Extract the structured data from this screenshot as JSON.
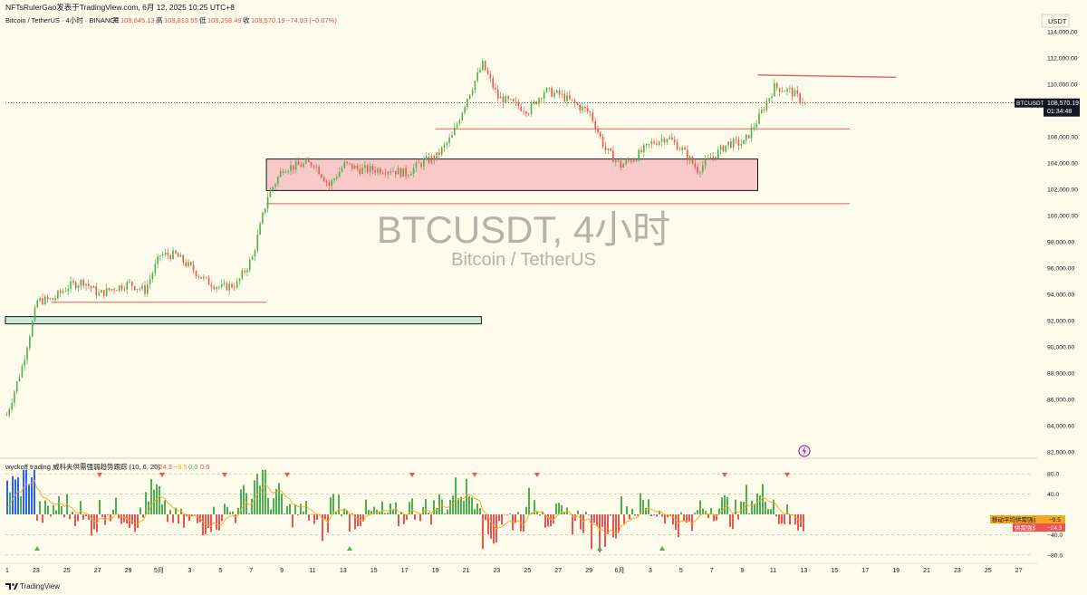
{
  "header": {
    "publisher": "NFTsRulerGao发表于TradingView.com, 6月 12, 2025 10:25 UTC+8",
    "symbol_line": "Bitcoin / TetherUS · 4小时 · BINANCE",
    "ohlc": {
      "open_label": "开",
      "open": "108,645.13",
      "high_label": "高",
      "high": "108,813.55",
      "low_label": "低",
      "low": "108,258.49",
      "close_label": "收",
      "close": "108,570.19",
      "change": "−74.93 (−0.07%)"
    }
  },
  "watermark": {
    "title": "BTCUSDT, 4小时",
    "subtitle": "Bitcoin / TetherUS"
  },
  "price_axis": {
    "currency": "USDT",
    "ticks": [
      "114,000.00",
      "112,000.00",
      "110,000.00",
      "108,000.00",
      "106,000.00",
      "104,000.00",
      "102,000.00",
      "100,000.00",
      "98,000.00",
      "96,000.00",
      "94,000.00",
      "92,000.00",
      "90,000.00",
      "88,000.00",
      "86,000.00",
      "84,000.00",
      "82,000.00"
    ],
    "last_label": "BTCUSDT",
    "last_price": "108,570.19",
    "countdown": "01:34:48"
  },
  "indicator": {
    "title": "wyckoff trading 威科夫供需强弱趋势跟踪 (10, 6, 20)",
    "values": [
      "−24.3",
      "−9.5",
      "0.0",
      "0.0"
    ],
    "ticks": [
      "80.0",
      "40.0",
      "−40.0",
      "−80.0"
    ],
    "label_ma": "移动平均供需强弱",
    "label_ma_value": "−9.5",
    "label_sd": "供需强弱",
    "label_sd_value": "−24.3"
  },
  "time_axis": {
    "labels": [
      "1",
      "23",
      "25",
      "27",
      "29",
      "5月",
      "3",
      "5",
      "7",
      "9",
      "11",
      "13",
      "15",
      "17",
      "19",
      "21",
      "23",
      "25",
      "27",
      "29",
      "6月",
      "3",
      "5",
      "7",
      "9",
      "11",
      "13",
      "15",
      "17",
      "19",
      "21",
      "23",
      "25",
      "27"
    ]
  },
  "footer": {
    "brand": "TradingView"
  },
  "colors": {
    "background": "#fdfbea",
    "up": "#4caf50",
    "down": "#ef5350",
    "ma": "#f5a623",
    "resistance_zone": "#f8c9c6",
    "support_zone": "#cfe8d2",
    "line_red": "#e06060",
    "last_price": "#131722"
  },
  "chart_data": {
    "type": "candlestick",
    "title": "BTCUSDT, 4小时",
    "interval": "4h",
    "ylim": [
      82000,
      114500
    ],
    "price_path": [
      {
        "date": "2025-04-21",
        "price": 84800
      },
      {
        "date": "2025-04-22",
        "price": 88500
      },
      {
        "date": "2025-04-23",
        "price": 93500
      },
      {
        "date": "2025-04-24",
        "price": 93600
      },
      {
        "date": "2025-04-25",
        "price": 94600
      },
      {
        "date": "2025-04-26",
        "price": 95000
      },
      {
        "date": "2025-04-27",
        "price": 94000
      },
      {
        "date": "2025-04-28",
        "price": 94500
      },
      {
        "date": "2025-04-29",
        "price": 94800
      },
      {
        "date": "2025-04-30",
        "price": 94300
      },
      {
        "date": "2025-05-01",
        "price": 97000
      },
      {
        "date": "2025-05-02",
        "price": 97000
      },
      {
        "date": "2025-05-03",
        "price": 96000
      },
      {
        "date": "2025-05-04",
        "price": 95000
      },
      {
        "date": "2025-05-05",
        "price": 94500
      },
      {
        "date": "2025-05-06",
        "price": 94800
      },
      {
        "date": "2025-05-07",
        "price": 96800
      },
      {
        "date": "2025-05-08",
        "price": 101500
      },
      {
        "date": "2025-05-09",
        "price": 103600
      },
      {
        "date": "2025-05-10",
        "price": 103800
      },
      {
        "date": "2025-05-11",
        "price": 104000
      },
      {
        "date": "2025-05-12",
        "price": 102300
      },
      {
        "date": "2025-05-13",
        "price": 103900
      },
      {
        "date": "2025-05-14",
        "price": 103500
      },
      {
        "date": "2025-05-15",
        "price": 103500
      },
      {
        "date": "2025-05-16",
        "price": 103500
      },
      {
        "date": "2025-05-17",
        "price": 103200
      },
      {
        "date": "2025-05-18",
        "price": 104000
      },
      {
        "date": "2025-05-19",
        "price": 104500
      },
      {
        "date": "2025-05-20",
        "price": 106000
      },
      {
        "date": "2025-05-21",
        "price": 109000
      },
      {
        "date": "2025-05-22",
        "price": 111500
      },
      {
        "date": "2025-05-23",
        "price": 109000
      },
      {
        "date": "2025-05-24",
        "price": 108500
      },
      {
        "date": "2025-05-25",
        "price": 108000
      },
      {
        "date": "2025-05-26",
        "price": 109500
      },
      {
        "date": "2025-05-27",
        "price": 109200
      },
      {
        "date": "2025-05-28",
        "price": 108500
      },
      {
        "date": "2025-05-29",
        "price": 107800
      },
      {
        "date": "2025-05-30",
        "price": 105000
      },
      {
        "date": "2025-05-31",
        "price": 103800
      },
      {
        "date": "2025-06-01",
        "price": 104500
      },
      {
        "date": "2025-06-02",
        "price": 105500
      },
      {
        "date": "2025-06-03",
        "price": 106000
      },
      {
        "date": "2025-06-04",
        "price": 105000
      },
      {
        "date": "2025-06-05",
        "price": 103500
      },
      {
        "date": "2025-06-06",
        "price": 104500
      },
      {
        "date": "2025-06-07",
        "price": 105500
      },
      {
        "date": "2025-06-08",
        "price": 105500
      },
      {
        "date": "2025-06-09",
        "price": 107500
      },
      {
        "date": "2025-06-10",
        "price": 109800
      },
      {
        "date": "2025-06-11",
        "price": 109500
      },
      {
        "date": "2025-06-12",
        "price": 108570
      }
    ],
    "zones": [
      {
        "type": "resistance",
        "from": "2025-05-08",
        "to": "2025-06-09",
        "low": 101900,
        "high": 104300
      },
      {
        "type": "support",
        "from": "2025-04-21",
        "to": "2025-05-22",
        "low": 91750,
        "high": 92300
      }
    ],
    "lines": [
      {
        "from": "2025-05-19",
        "to": "2025-06-15",
        "price": 106600
      },
      {
        "from": "2025-05-08",
        "to": "2025-06-15",
        "price": 100900
      },
      {
        "from": "2025-04-24",
        "to": "2025-05-08",
        "price": 93400
      },
      {
        "from": "2025-06-09",
        "to": "2025-06-18",
        "price": 110700
      }
    ],
    "indicator": {
      "name": "wyckoff trading 威科夫供需强弱趋势跟踪",
      "params": [
        10,
        6,
        20
      ],
      "ylim": [
        -95,
        95
      ],
      "last_supply_demand": -24.3,
      "last_ma": -9.5
    }
  }
}
